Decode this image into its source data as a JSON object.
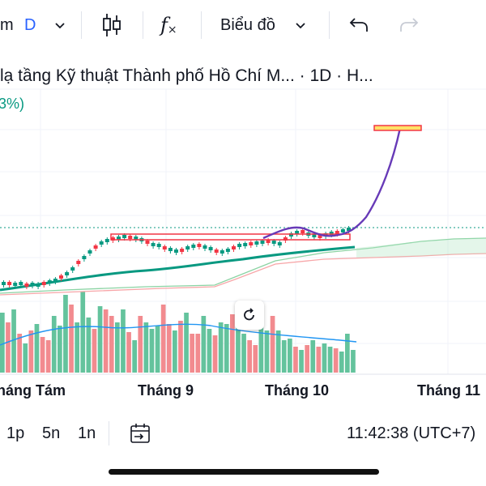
{
  "toolbar": {
    "interval_partial": "m",
    "interval_letter": "D",
    "chart_type_label": "Biểu đồ",
    "accent_color": "#2962ff"
  },
  "header": {
    "symbol_title": "lạ tầng Kỹ thuật Thành phố Hồ Chí M... · 1D · H...",
    "change_pct": "3%)"
  },
  "time_axis": [
    "háng Tám",
    "Tháng 9",
    "Tháng 10",
    "Tháng 11"
  ],
  "bottom": {
    "ranges": [
      "1p",
      "5n",
      "1n"
    ],
    "clock": "11:42:38 (UTC+7)"
  },
  "colors": {
    "up": "#089981",
    "down": "#f23645",
    "ma": "#089981",
    "drawing": "#673ab7",
    "volume_ma": "#2196f3"
  },
  "icons": [
    "chevron-down-icon",
    "candles-icon",
    "indicator-fx-icon",
    "chevron-down-icon",
    "undo-icon",
    "redo-icon",
    "reset-zoom-icon",
    "goto-date-icon"
  ]
}
